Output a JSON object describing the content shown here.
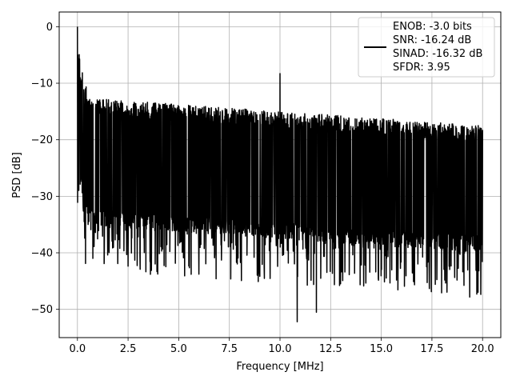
{
  "chart_data": {
    "type": "line",
    "title": "",
    "xlabel": "Frequency [MHz]",
    "ylabel": "PSD [dB]",
    "xlim": [
      -0.9,
      20.9
    ],
    "ylim": [
      -55,
      2.6
    ],
    "x_ticks": [
      0.0,
      2.5,
      5.0,
      7.5,
      10.0,
      12.5,
      15.0,
      17.5,
      20.0
    ],
    "x_tick_labels": [
      "0.0",
      "2.5",
      "5.0",
      "7.5",
      "10.0",
      "12.5",
      "15.0",
      "17.5",
      "20.0"
    ],
    "y_ticks": [
      0,
      -10,
      -20,
      -30,
      -40,
      -50
    ],
    "y_tick_labels": [
      "0",
      "−10",
      "−20",
      "−30",
      "−40",
      "−50"
    ],
    "grid": true,
    "legend_position": "top-right",
    "legend_lines": [
      "ENOB: -3.0 bits",
      "SNR: -16.24 dB",
      "SINAD: -16.32 dB",
      "SFDR: 3.95"
    ],
    "series": [
      {
        "color": "#000000",
        "x_range": [
          0,
          20
        ],
        "points_count": 2049,
        "noise_floor": {
          "upper_start": -12.5,
          "upper_end": -17.5,
          "lower_start": -35.0,
          "lower_end": -40.0,
          "min": -52.2
        },
        "x": [
          0.0,
          0.02,
          0.05,
          0.1,
          0.2,
          10.0,
          10.85,
          11.8
        ],
        "y": [
          0.0,
          -5.0,
          -6.5,
          -9.5,
          -12.5,
          -8.3,
          -52.2,
          -50.5
        ]
      }
    ]
  }
}
